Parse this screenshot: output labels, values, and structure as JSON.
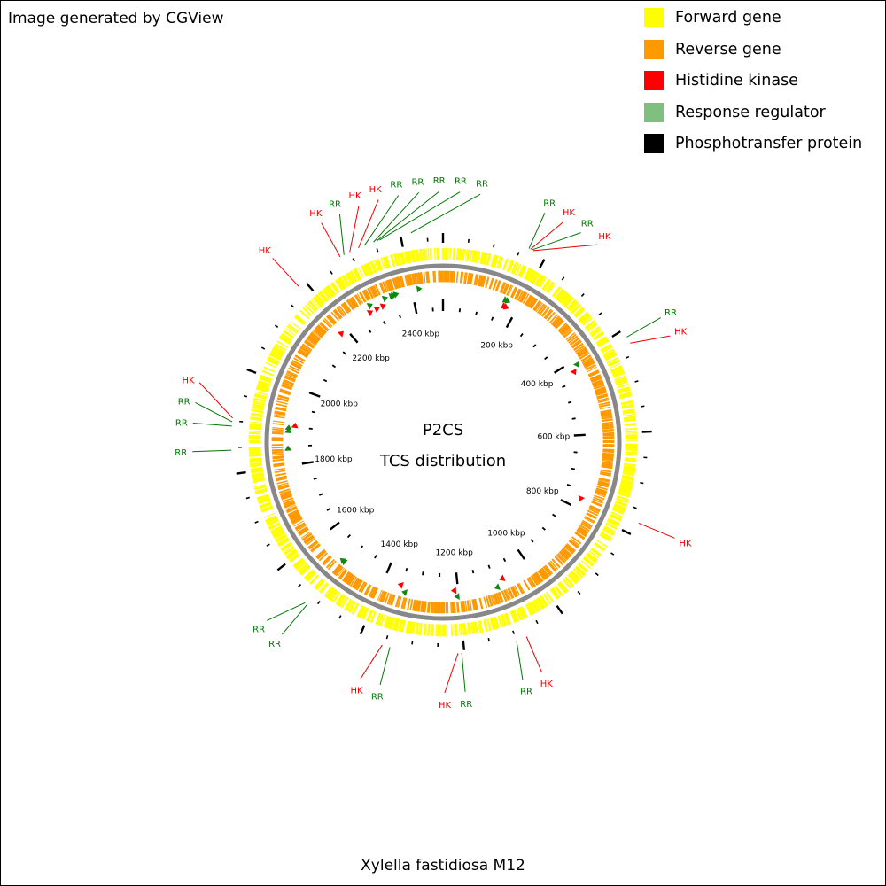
{
  "credit": "Image generated by CGView",
  "organism": "Xylella fastidiosa M12",
  "center_title": "P2CS",
  "center_subtitle": "TCS distribution",
  "genome_length_kbp": 2480,
  "colors": {
    "forward_gene": "#ffff00",
    "reverse_gene": "#ff9900",
    "histidine_kinase": "#ff0000",
    "response_regulator": "#7fbf7f",
    "phosphotransfer_protein": "#000000",
    "rr_label": "#007700",
    "hk_label": "#ee0000",
    "backbone": "#888888"
  },
  "legend": [
    {
      "label": "Forward gene",
      "color": "#ffff00"
    },
    {
      "label": "Reverse gene",
      "color": "#ff9900"
    },
    {
      "label": "Histidine kinase",
      "color": "#ff0000"
    },
    {
      "label": "Response regulator",
      "color": "#7fbf7f"
    },
    {
      "label": "Phosphotransfer protein",
      "color": "#000000"
    }
  ],
  "kbp_labels": [
    {
      "kbp": 200,
      "text": "200 kbp"
    },
    {
      "kbp": 400,
      "text": "400 kbp"
    },
    {
      "kbp": 600,
      "text": "600 kbp"
    },
    {
      "kbp": 800,
      "text": "800 kbp"
    },
    {
      "kbp": 1000,
      "text": "1000 kbp"
    },
    {
      "kbp": 1200,
      "text": "1200 kbp"
    },
    {
      "kbp": 1400,
      "text": "1400 kbp"
    },
    {
      "kbp": 1600,
      "text": "1600 kbp"
    },
    {
      "kbp": 1800,
      "text": "1800 kbp"
    },
    {
      "kbp": 2000,
      "text": "2000 kbp"
    },
    {
      "kbp": 2200,
      "text": "2200 kbp"
    },
    {
      "kbp": 2400,
      "text": "2400 kbp"
    }
  ],
  "features": [
    {
      "type": "RR",
      "kbp": 165
    },
    {
      "type": "HK",
      "kbp": 168
    },
    {
      "type": "RR",
      "kbp": 171
    },
    {
      "type": "HK",
      "kbp": 174
    },
    {
      "type": "RR",
      "kbp": 415
    },
    {
      "type": "HK",
      "kbp": 428
    },
    {
      "type": "HK",
      "kbp": 775
    },
    {
      "type": "HK",
      "kbp": 1080
    },
    {
      "type": "RR",
      "kbp": 1100
    },
    {
      "type": "RR",
      "kbp": 1205
    },
    {
      "type": "HK",
      "kbp": 1212
    },
    {
      "type": "RR",
      "kbp": 1340
    },
    {
      "type": "HK",
      "kbp": 1355
    },
    {
      "type": "RR",
      "kbp": 1515
    },
    {
      "type": "RR",
      "kbp": 1520
    },
    {
      "type": "RR",
      "kbp": 1845
    },
    {
      "type": "RR",
      "kbp": 1890
    },
    {
      "type": "RR",
      "kbp": 1898
    },
    {
      "type": "HK",
      "kbp": 1905
    },
    {
      "type": "HK",
      "kbp": 2185
    },
    {
      "type": "HK",
      "kbp": 2280
    },
    {
      "type": "RR",
      "kbp": 2288
    },
    {
      "type": "HK",
      "kbp": 2300
    },
    {
      "type": "HK",
      "kbp": 2318
    },
    {
      "type": "RR",
      "kbp": 2330
    },
    {
      "type": "RR",
      "kbp": 2348
    },
    {
      "type": "RR",
      "kbp": 2354
    },
    {
      "type": "RR",
      "kbp": 2360
    },
    {
      "type": "RR",
      "kbp": 2420
    }
  ]
}
